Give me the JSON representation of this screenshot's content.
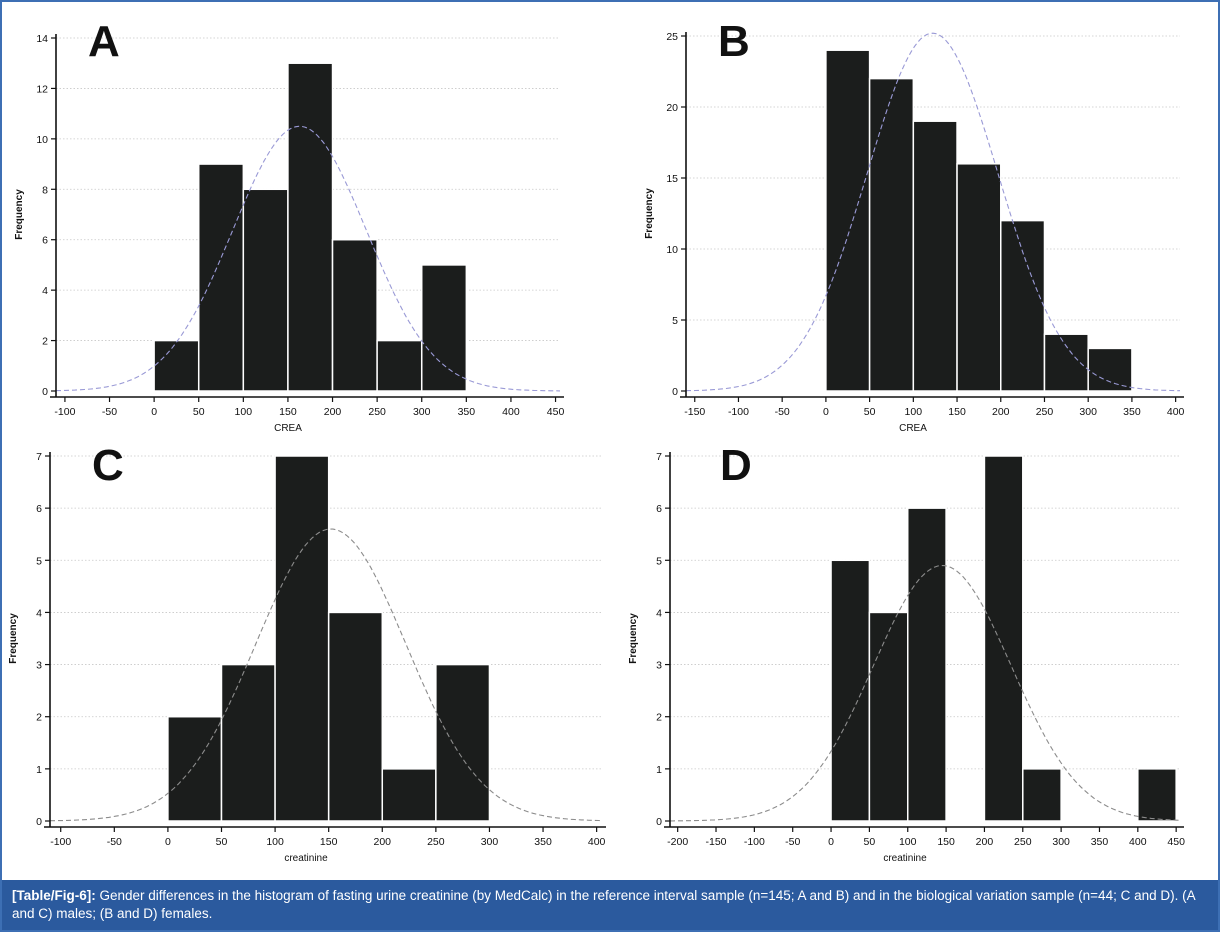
{
  "colors": {
    "bar": "#1b1d1c",
    "grid": "#c8c8c8",
    "curve_blue": "#9a9ad6",
    "curve_gray": "#8c8c8c",
    "caption_bg": "#2b5a9e",
    "frame": "#3d6fb4"
  },
  "caption": {
    "label": "[Table/Fig-6]:",
    "text": " Gender differences in the histogram of fasting urine creatinine (by MedCalc) in the reference interval sample (n=145; A and B) and in the biological variation sample (n=44; C and D). (A and C) males; (B and D) females."
  },
  "chart_data": [
    {
      "type": "bar",
      "panel": "A",
      "title": "",
      "xlabel": "CREA",
      "ylabel": "Frequency",
      "xlim": [
        -110,
        455
      ],
      "ylim": [
        0,
        14
      ],
      "xticks": [
        -100,
        -50,
        0,
        50,
        100,
        150,
        200,
        250,
        300,
        350,
        400,
        450
      ],
      "yticks": [
        0,
        2,
        4,
        6,
        8,
        10,
        12,
        14
      ],
      "grid": true,
      "curve_color": "blue",
      "bins": [
        {
          "start": 0,
          "end": 50,
          "value": 2
        },
        {
          "start": 50,
          "end": 100,
          "value": 9
        },
        {
          "start": 100,
          "end": 150,
          "value": 8
        },
        {
          "start": 150,
          "end": 200,
          "value": 13
        },
        {
          "start": 200,
          "end": 250,
          "value": 6
        },
        {
          "start": 250,
          "end": 300,
          "value": 2
        },
        {
          "start": 300,
          "end": 350,
          "value": 5
        }
      ],
      "normal_curve": {
        "mean": 163,
        "sd": 75,
        "peak": 10.5
      }
    },
    {
      "type": "bar",
      "panel": "B",
      "title": "",
      "xlabel": "CREA",
      "ylabel": "Frequency",
      "xlim": [
        -160,
        405
      ],
      "ylim": [
        0,
        25
      ],
      "xticks": [
        -150,
        -100,
        -50,
        0,
        50,
        100,
        150,
        200,
        250,
        300,
        350,
        400
      ],
      "yticks": [
        0,
        5,
        10,
        15,
        20,
        25
      ],
      "grid": true,
      "curve_color": "blue",
      "bins": [
        {
          "start": 0,
          "end": 50,
          "value": 24
        },
        {
          "start": 50,
          "end": 100,
          "value": 22
        },
        {
          "start": 100,
          "end": 150,
          "value": 19
        },
        {
          "start": 150,
          "end": 200,
          "value": 16
        },
        {
          "start": 200,
          "end": 250,
          "value": 12
        },
        {
          "start": 250,
          "end": 300,
          "value": 4
        },
        {
          "start": 300,
          "end": 350,
          "value": 3
        }
      ],
      "normal_curve": {
        "mean": 122,
        "sd": 75,
        "peak": 25.2
      }
    },
    {
      "type": "bar",
      "panel": "C",
      "title": "",
      "xlabel": "creatinine",
      "ylabel": "Frequency",
      "xlim": [
        -110,
        405
      ],
      "ylim": [
        0,
        7
      ],
      "xticks": [
        -100,
        -50,
        0,
        50,
        100,
        150,
        200,
        250,
        300,
        350,
        400
      ],
      "yticks": [
        0,
        1,
        2,
        3,
        4,
        5,
        6,
        7
      ],
      "grid": true,
      "curve_color": "gray",
      "bins": [
        {
          "start": 0,
          "end": 50,
          "value": 2
        },
        {
          "start": 50,
          "end": 100,
          "value": 3
        },
        {
          "start": 100,
          "end": 150,
          "value": 7
        },
        {
          "start": 150,
          "end": 200,
          "value": 4
        },
        {
          "start": 200,
          "end": 250,
          "value": 1
        },
        {
          "start": 250,
          "end": 300,
          "value": 3
        }
      ],
      "normal_curve": {
        "mean": 152,
        "sd": 70,
        "peak": 5.6
      }
    },
    {
      "type": "bar",
      "panel": "D",
      "title": "",
      "xlabel": "creatinine",
      "ylabel": "Frequency",
      "xlim": [
        -210,
        455
      ],
      "ylim": [
        0,
        7
      ],
      "xticks": [
        -200,
        -150,
        -100,
        -50,
        0,
        50,
        100,
        150,
        200,
        250,
        300,
        350,
        400,
        450
      ],
      "yticks": [
        0,
        1,
        2,
        3,
        4,
        5,
        6,
        7
      ],
      "grid": true,
      "curve_color": "gray",
      "bins": [
        {
          "start": 0,
          "end": 50,
          "value": 5
        },
        {
          "start": 50,
          "end": 100,
          "value": 4
        },
        {
          "start": 100,
          "end": 150,
          "value": 6
        },
        {
          "start": 200,
          "end": 250,
          "value": 7
        },
        {
          "start": 250,
          "end": 300,
          "value": 1
        },
        {
          "start": 400,
          "end": 450,
          "value": 1
        }
      ],
      "normal_curve": {
        "mean": 145,
        "sd": 90,
        "peak": 4.9
      }
    }
  ]
}
